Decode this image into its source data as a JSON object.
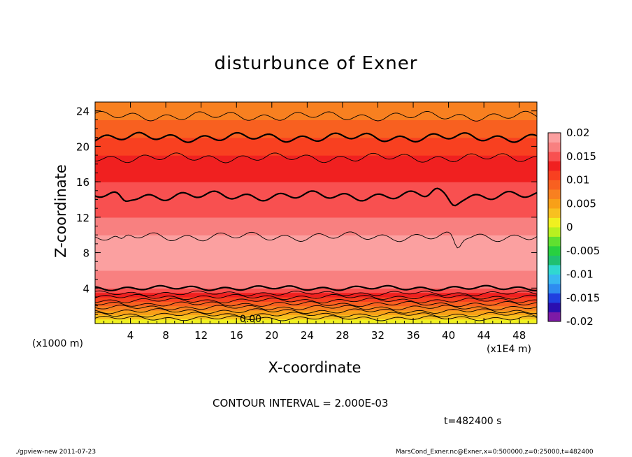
{
  "chart_data": {
    "type": "heatmap",
    "title": "disturbunce of Exner",
    "xlabel": "X-coordinate",
    "ylabel": "Z-coordinate",
    "x_unit": "(x1E4 m)",
    "y_unit": "(x1000 m)",
    "xlim": [
      0,
      50
    ],
    "ylim": [
      0,
      25
    ],
    "x_ticks": [
      4,
      8,
      12,
      16,
      20,
      24,
      28,
      32,
      36,
      40,
      44,
      48
    ],
    "y_ticks": [
      4,
      8,
      12,
      16,
      20,
      24
    ],
    "contour_interval_text": "CONTOUR INTERVAL = 2.000E-03",
    "contour_label": "0.00",
    "colorbar": {
      "ticks": [
        "0.02",
        "0.015",
        "0.01",
        "0.005",
        "0",
        "-0.005",
        "-0.01",
        "-0.015",
        "-0.02"
      ],
      "range": [
        -0.02,
        0.02
      ],
      "colors": [
        "#7d1aa6",
        "#2a0fb0",
        "#2040e0",
        "#2e8cf0",
        "#38b8f0",
        "#30d8d0",
        "#20c070",
        "#28d040",
        "#60e030",
        "#b8f020",
        "#f0f020",
        "#f8c020",
        "#f8a018",
        "#f88020",
        "#f86020",
        "#f84020",
        "#f02020",
        "#f85050",
        "#f88080",
        "#fba0a0"
      ]
    },
    "z_profile": {
      "z": [
        0,
        1,
        2,
        2.5,
        3,
        3.5,
        4,
        5,
        6,
        7,
        8,
        9,
        10,
        11,
        12,
        13,
        14,
        15,
        16,
        17,
        18,
        19,
        20,
        21,
        22,
        23,
        24,
        25
      ],
      "values": [
        0,
        0.004,
        0.008,
        0.01,
        0.012,
        0.014,
        0.016,
        0.017,
        0.018,
        0.019,
        0.0195,
        0.019,
        0.018,
        0.017,
        0.016,
        0.0155,
        0.015,
        0.0145,
        0.014,
        0.0135,
        0.013,
        0.012,
        0.011,
        0.01,
        0.009,
        0.008,
        0.007,
        0.006
      ]
    },
    "contours": [
      {
        "z": 0.6,
        "bold": false
      },
      {
        "z": 1.0,
        "bold": false
      },
      {
        "z": 1.4,
        "bold": false
      },
      {
        "z": 1.8,
        "bold": false
      },
      {
        "z": 2.2,
        "bold": false
      },
      {
        "z": 2.6,
        "bold": false
      },
      {
        "z": 3.0,
        "bold": false
      },
      {
        "z": 3.4,
        "bold": false
      },
      {
        "z": 4.0,
        "bold": true
      },
      {
        "z": 9.8,
        "bold": false
      },
      {
        "z": 14.4,
        "bold": true
      },
      {
        "z": 18.7,
        "bold": false
      },
      {
        "z": 21.0,
        "bold": true
      },
      {
        "z": 23.4,
        "bold": false
      }
    ]
  },
  "annotations": {
    "time": "t=482400 s",
    "footer_left": "./gpview-new   2011-07-23",
    "footer_right": "MarsCond_Exner.nc@Exner,x=0:500000,z=0:25000,t=482400"
  }
}
